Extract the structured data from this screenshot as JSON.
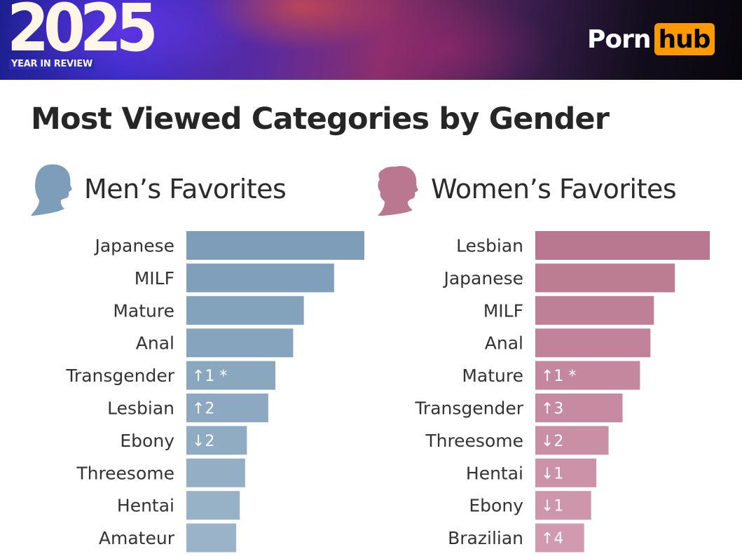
{
  "banner": {
    "year": "2025",
    "subtitle": "YEAR IN REVIEW",
    "brand_left": "Porn",
    "brand_right": "hub"
  },
  "chart_data": [
    {
      "type": "bar",
      "title": "Most Viewed Categories by Gender",
      "subtitle": "Men’s Favorites",
      "categories": [
        "Japanese",
        "MILF",
        "Mature",
        "Anal",
        "Transgender",
        "Lesbian",
        "Ebony",
        "Threesome",
        "Hentai",
        "Amateur"
      ],
      "values": [
        100,
        83,
        66,
        60,
        50,
        46,
        34,
        33,
        30,
        28
      ],
      "rank_changes": [
        "",
        "",
        "",
        "",
        "↑1 *",
        "↑2",
        "↓2",
        "",
        "",
        ""
      ],
      "color": "#7d9db8",
      "color_light": "#9ab3c9"
    },
    {
      "type": "bar",
      "subtitle": "Women’s Favorites",
      "categories": [
        "Lesbian",
        "Japanese",
        "MILF",
        "Anal",
        "Mature",
        "Transgender",
        "Threesome",
        "Hentai",
        "Ebony",
        "Brazilian"
      ],
      "values": [
        100,
        80,
        68,
        66,
        60,
        50,
        42,
        35,
        32,
        28
      ],
      "rank_changes": [
        "",
        "",
        "",
        "",
        "↑1 *",
        "↑3",
        "↓2",
        "↓1",
        "↓1",
        "↑4"
      ],
      "color": "#b9788f",
      "color_light": "#d19aae"
    }
  ]
}
